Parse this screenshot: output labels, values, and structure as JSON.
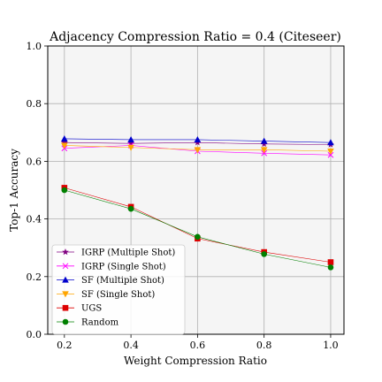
{
  "chart_data": {
    "type": "line",
    "title": "Adjacency Compression Ratio = 0.4 (Citeseer)",
    "xlabel": "Weight Compression Ratio",
    "ylabel": "Top-1 Accuracy",
    "x": [
      0.2,
      0.4,
      0.6,
      0.8,
      1.0
    ],
    "xticks": [
      "0.2",
      "0.4",
      "0.6",
      "0.8",
      "1.0"
    ],
    "yticks": [
      "0.0",
      "0.2",
      "0.4",
      "0.6",
      "0.8",
      "1.0"
    ],
    "xlim": [
      0.15,
      1.04
    ],
    "ylim": [
      0.0,
      1.0
    ],
    "grid": true,
    "legend_position": "lower-left",
    "series": [
      {
        "name": "IGRP (Multiple Shot)",
        "color": "#800080",
        "marker": "star",
        "values": [
          0.665,
          0.662,
          0.665,
          0.66,
          0.658
        ]
      },
      {
        "name": "IGRP (Single Shot)",
        "color": "#ff00ff",
        "marker": "x",
        "values": [
          0.645,
          0.655,
          0.635,
          0.628,
          0.622
        ]
      },
      {
        "name": "SF (Multiple Shot)",
        "color": "#0000cc",
        "marker": "triangle-up",
        "values": [
          0.678,
          0.675,
          0.675,
          0.67,
          0.665
        ]
      },
      {
        "name": "SF (Single Shot)",
        "color": "#ffa500",
        "marker": "triangle-down",
        "values": [
          0.655,
          0.648,
          0.64,
          0.64,
          0.635
        ]
      },
      {
        "name": "UGS",
        "color": "#dd0000",
        "marker": "square",
        "values": [
          0.508,
          0.442,
          0.332,
          0.285,
          0.25
        ]
      },
      {
        "name": "Random",
        "color": "#008000",
        "marker": "circle",
        "values": [
          0.5,
          0.435,
          0.338,
          0.278,
          0.232
        ]
      }
    ]
  }
}
